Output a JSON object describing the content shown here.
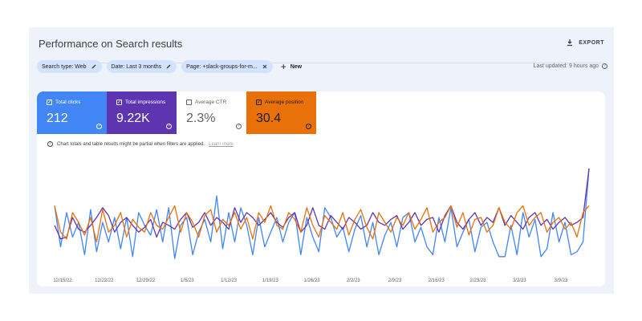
{
  "header": {
    "title": "Performance on Search results",
    "export_label": "EXPORT"
  },
  "filters": [
    {
      "label": "Search type: Web",
      "icon": "edit-icon"
    },
    {
      "label": "Date: Last 3 months",
      "icon": "edit-icon"
    },
    {
      "label": "Page: +slack-groups-for-m...",
      "icon": "close-icon"
    }
  ],
  "new_label": "New",
  "last_updated": "Last updated: 9 hours ago",
  "metrics": [
    {
      "label": "Total clicks",
      "value": "212",
      "checked": true,
      "color": "#4285f4"
    },
    {
      "label": "Total impressions",
      "value": "9.22K",
      "checked": true,
      "color": "#5e35b1"
    },
    {
      "label": "Average CTR",
      "value": "2.3%",
      "checked": false,
      "color": "#ffffff"
    },
    {
      "label": "Average position",
      "value": "30.4",
      "checked": true,
      "color": "#e8710a"
    }
  ],
  "notice": {
    "text": "Chart totals and table results might be partial when filters are applied.",
    "link": "Learn more"
  },
  "chart_data": {
    "type": "line",
    "x_tick_labels": [
      "12/15/22",
      "12/22/22",
      "12/29/22",
      "1/5/23",
      "1/12/23",
      "1/19/23",
      "1/26/23",
      "2/2/23",
      "2/9/23",
      "2/16/23",
      "2/23/23",
      "3/2/23",
      "3/9/23"
    ],
    "series": [
      {
        "name": "Total clicks",
        "color": "#4285f4",
        "values": [
          0.62,
          0.2,
          0.55,
          0.3,
          0.45,
          0.12,
          0.58,
          0.15,
          0.45,
          0.25,
          0.5,
          0.18,
          0.5,
          0.1,
          0.55,
          0.42,
          0.32,
          0.58,
          0.25,
          0.6,
          0.08,
          0.42,
          0.5,
          0.12,
          0.35,
          0.48,
          0.25,
          0.72,
          0.18,
          0.55,
          0.25,
          0.6,
          0.42,
          0.12,
          0.5,
          0.2,
          0.35,
          0.5,
          0.25,
          0.45,
          0.55,
          0.12,
          0.5,
          0.3,
          0.15,
          0.6,
          0.5,
          0.3,
          0.4,
          0.15,
          0.38,
          0.52,
          0.2,
          0.45,
          0.12,
          0.32,
          0.45,
          0.2,
          0.5,
          0.55,
          0.25,
          0.4,
          0.2,
          0.12,
          0.5,
          0.25,
          0.6,
          0.2,
          0.35,
          0.48,
          0.15,
          0.4,
          0.45,
          0.25,
          0.1,
          0.1,
          0.42,
          0.12,
          0.55,
          0.3,
          0.48,
          0.1,
          0.18,
          0.55,
          0.25,
          0.45,
          0.12,
          0.15,
          0.25,
          1.0
        ]
      },
      {
        "name": "Total impressions",
        "color": "#5e35b1",
        "values": [
          0.42,
          0.28,
          0.3,
          0.5,
          0.38,
          0.35,
          0.42,
          0.5,
          0.6,
          0.52,
          0.35,
          0.45,
          0.5,
          0.42,
          0.35,
          0.4,
          0.48,
          0.3,
          0.45,
          0.42,
          0.38,
          0.48,
          0.55,
          0.4,
          0.45,
          0.55,
          0.42,
          0.5,
          0.45,
          0.38,
          0.6,
          0.45,
          0.55,
          0.5,
          0.42,
          0.48,
          0.55,
          0.45,
          0.4,
          0.5,
          0.55,
          0.35,
          0.42,
          0.6,
          0.42,
          0.38,
          0.52,
          0.45,
          0.38,
          0.5,
          0.45,
          0.38,
          0.42,
          0.55,
          0.45,
          0.42,
          0.48,
          0.52,
          0.38,
          0.45,
          0.55,
          0.42,
          0.48,
          0.5,
          0.35,
          0.52,
          0.62,
          0.45,
          0.38,
          0.48,
          0.55,
          0.42,
          0.5,
          0.45,
          0.6,
          0.42,
          0.52,
          0.45,
          0.38,
          0.5,
          0.55,
          0.42,
          0.48,
          0.38,
          0.45,
          0.5,
          0.42,
          0.45,
          0.5,
          1.0
        ]
      },
      {
        "name": "Average position",
        "color": "#e8710a",
        "values": [
          0.62,
          0.35,
          0.28,
          0.55,
          0.45,
          0.32,
          0.5,
          0.25,
          0.58,
          0.35,
          0.42,
          0.55,
          0.3,
          0.48,
          0.4,
          0.35,
          0.55,
          0.42,
          0.38,
          0.5,
          0.62,
          0.35,
          0.55,
          0.45,
          0.3,
          0.52,
          0.58,
          0.35,
          0.48,
          0.42,
          0.55,
          0.38,
          0.5,
          0.28,
          0.55,
          0.45,
          0.62,
          0.42,
          0.38,
          0.55,
          0.48,
          0.35,
          0.6,
          0.42,
          0.3,
          0.52,
          0.45,
          0.38,
          0.55,
          0.32,
          0.48,
          0.58,
          0.4,
          0.28,
          0.55,
          0.45,
          0.35,
          0.5,
          0.42,
          0.55,
          0.38,
          0.48,
          0.6,
          0.35,
          0.45,
          0.5,
          0.62,
          0.4,
          0.55,
          0.32,
          0.48,
          0.5,
          0.35,
          0.42,
          0.6,
          0.45,
          0.38,
          0.55,
          0.62,
          0.42,
          0.5,
          0.55,
          0.35,
          0.45,
          0.5,
          0.38,
          0.45,
          0.3,
          0.55,
          0.62
        ]
      }
    ]
  }
}
